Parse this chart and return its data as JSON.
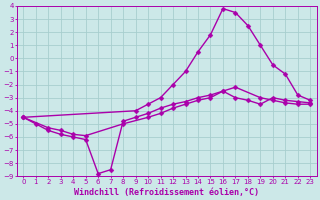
{
  "background_color": "#cce8e8",
  "grid_color": "#a8cece",
  "line_color": "#aa00aa",
  "marker": "D",
  "markersize": 2.5,
  "linewidth": 1.0,
  "xlim": [
    -0.5,
    23.5
  ],
  "ylim": [
    -9,
    4
  ],
  "xticks": [
    0,
    1,
    2,
    3,
    4,
    5,
    6,
    7,
    8,
    9,
    10,
    11,
    12,
    13,
    14,
    15,
    16,
    17,
    18,
    19,
    20,
    21,
    22,
    23
  ],
  "yticks": [
    4,
    3,
    2,
    1,
    0,
    -1,
    -2,
    -3,
    -4,
    -5,
    -6,
    -7,
    -8,
    -9
  ],
  "xlabel": "Windchill (Refroidissement éolien,°C)",
  "xlabel_fontsize": 6.0,
  "tick_fontsize": 5.0,
  "series1_x": [
    0,
    1,
    2,
    3,
    4,
    5,
    6,
    7,
    8,
    9,
    10,
    11,
    12,
    13,
    14,
    15,
    16,
    17,
    18,
    19,
    20,
    21,
    22,
    23
  ],
  "series1_y": [
    -4.5,
    -5.0,
    -5.5,
    -5.8,
    -6.0,
    -6.2,
    -8.8,
    -8.5,
    -4.8,
    -4.5,
    -4.2,
    -3.8,
    -3.5,
    -3.3,
    -3.0,
    -2.8,
    -2.5,
    -3.0,
    -3.2,
    -3.5,
    -3.0,
    -3.2,
    -3.3,
    -3.4
  ],
  "series2_x": [
    0,
    2,
    3,
    4,
    5,
    8,
    10,
    11,
    12,
    13,
    14,
    15,
    16,
    17,
    19,
    20,
    21,
    22,
    23
  ],
  "series2_y": [
    -4.5,
    -5.3,
    -5.5,
    -5.8,
    -5.9,
    -5.0,
    -4.5,
    -4.2,
    -3.8,
    -3.5,
    -3.2,
    -3.0,
    -2.5,
    -2.2,
    -3.0,
    -3.2,
    -3.4,
    -3.5,
    -3.5
  ],
  "series3_x": [
    0,
    9,
    10,
    11,
    12,
    13,
    14,
    15,
    16,
    17,
    18,
    19,
    20,
    21,
    22,
    23
  ],
  "series3_y": [
    -4.5,
    -4.0,
    -3.5,
    -3.0,
    -2.0,
    -1.0,
    0.5,
    1.8,
    3.8,
    3.5,
    2.5,
    1.0,
    -0.5,
    -1.2,
    -2.8,
    -3.2
  ]
}
